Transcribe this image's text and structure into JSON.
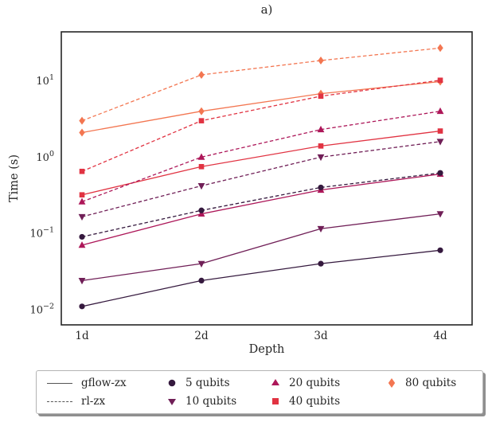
{
  "figure": {
    "background": "#ffffff",
    "text_color": "#262626",
    "spine_color": "#262626",
    "legend_line_color": "#555555"
  },
  "chart_data": {
    "type": "line",
    "title": "a)",
    "xlabel": "Depth",
    "ylabel": "Time (s)",
    "x_categories": [
      "1d",
      "2d",
      "3d",
      "4d"
    ],
    "y_scale": "log",
    "ylim": [
      0.0063,
      44
    ],
    "y_ticks": [
      0.01,
      0.1,
      1,
      10
    ],
    "y_tick_labels": [
      "10^-2",
      "10^-1",
      "10^0",
      "10^1"
    ],
    "grid": false,
    "legend_position": "bottom",
    "line_styles": {
      "gflow-zx": "solid",
      "rl-zx": "dashed"
    },
    "marker_by_qubits": {
      "5": "circle",
      "10": "triangle-down",
      "20": "triangle-up",
      "40": "square",
      "80": "diamond"
    },
    "color_by_qubits": {
      "5": "#35193e",
      "10": "#701f57",
      "20": "#ad1759",
      "40": "#e13342",
      "80": "#f37651"
    },
    "series": [
      {
        "name": "5 qubits gflow-zx",
        "qubits": "5",
        "method": "gflow-zx",
        "values": [
          0.011,
          0.024,
          0.04,
          0.06
        ]
      },
      {
        "name": "10 qubits gflow-zx",
        "qubits": "10",
        "method": "gflow-zx",
        "values": [
          0.024,
          0.04,
          0.115,
          0.18
        ]
      },
      {
        "name": "20 qubits gflow-zx",
        "qubits": "20",
        "method": "gflow-zx",
        "values": [
          0.07,
          0.18,
          0.37,
          0.6
        ]
      },
      {
        "name": "40 qubits gflow-zx",
        "qubits": "40",
        "method": "gflow-zx",
        "values": [
          0.32,
          0.75,
          1.4,
          2.2
        ]
      },
      {
        "name": "80 qubits gflow-zx",
        "qubits": "80",
        "method": "gflow-zx",
        "values": [
          2.1,
          4.0,
          6.8,
          9.8
        ]
      },
      {
        "name": "5 qubits rl-zx",
        "qubits": "5",
        "method": "rl-zx",
        "values": [
          0.09,
          0.2,
          0.4,
          0.62
        ]
      },
      {
        "name": "10 qubits rl-zx",
        "qubits": "10",
        "method": "rl-zx",
        "values": [
          0.165,
          0.42,
          1.0,
          1.6
        ]
      },
      {
        "name": "20 qubits rl-zx",
        "qubits": "20",
        "method": "rl-zx",
        "values": [
          0.26,
          1.0,
          2.3,
          4.0
        ]
      },
      {
        "name": "40 qubits rl-zx",
        "qubits": "40",
        "method": "rl-zx",
        "values": [
          0.65,
          3.0,
          6.3,
          10.2
        ]
      },
      {
        "name": "80 qubits rl-zx",
        "qubits": "80",
        "method": "rl-zx",
        "values": [
          3.0,
          12.0,
          18.5,
          27.0
        ]
      }
    ]
  },
  "legend": {
    "line_entries": [
      {
        "label": "gflow-zx",
        "style": "solid"
      },
      {
        "label": "rl-zx",
        "style": "dashed"
      }
    ],
    "marker_entries": [
      {
        "label": "5 qubits",
        "qubits": "5"
      },
      {
        "label": "10 qubits",
        "qubits": "10"
      },
      {
        "label": "20 qubits",
        "qubits": "20"
      },
      {
        "label": "40 qubits",
        "qubits": "40"
      },
      {
        "label": "80 qubits",
        "qubits": "80"
      }
    ]
  }
}
